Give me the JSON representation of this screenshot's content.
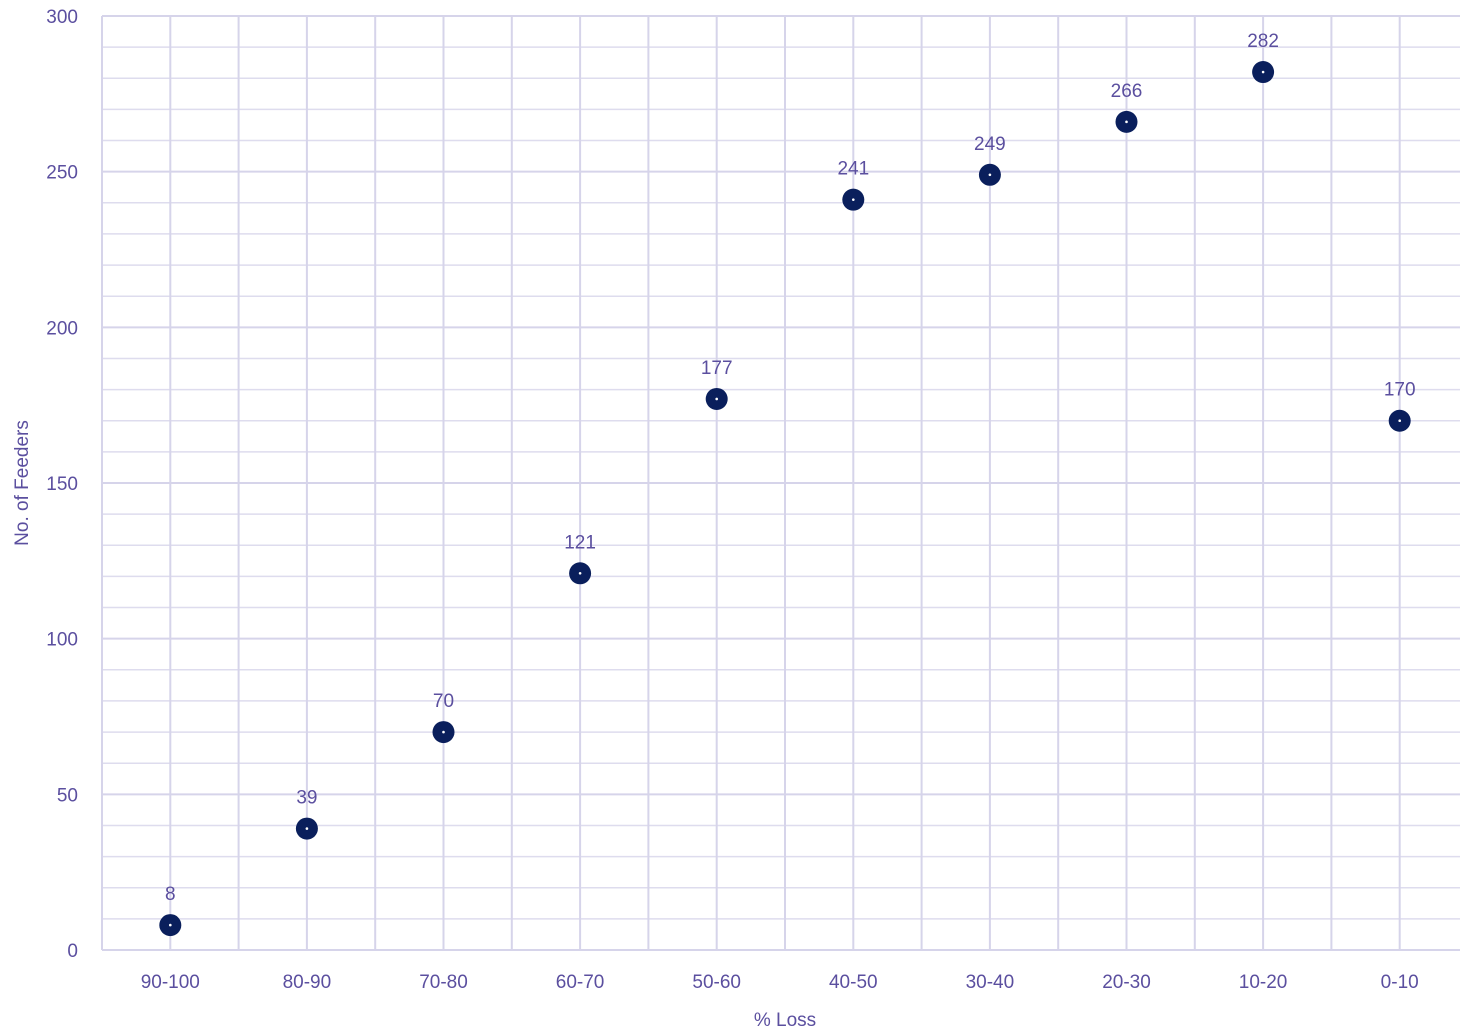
{
  "chart_data": {
    "type": "scatter",
    "title": "",
    "xlabel": "% Loss",
    "ylabel": "No. of Feeders",
    "categories": [
      "90-100",
      "80-90",
      "70-80",
      "60-70",
      "50-60",
      "40-50",
      "30-40",
      "20-30",
      "10-20",
      "0-10"
    ],
    "series": [
      {
        "values": [
          8,
          39,
          70,
          121,
          177,
          241,
          249,
          266,
          282,
          170
        ]
      }
    ],
    "ylim": [
      0,
      300
    ],
    "yticks": [
      0,
      50,
      100,
      150,
      200,
      250,
      300
    ],
    "y_minor_step": 10,
    "grid": true,
    "data_labels": true,
    "legend": "none",
    "colors": {
      "marker": "#0a1f5c",
      "marker_center": "#ffffff",
      "text": "#5b4f9f",
      "grid": "#d6d4ea"
    }
  }
}
